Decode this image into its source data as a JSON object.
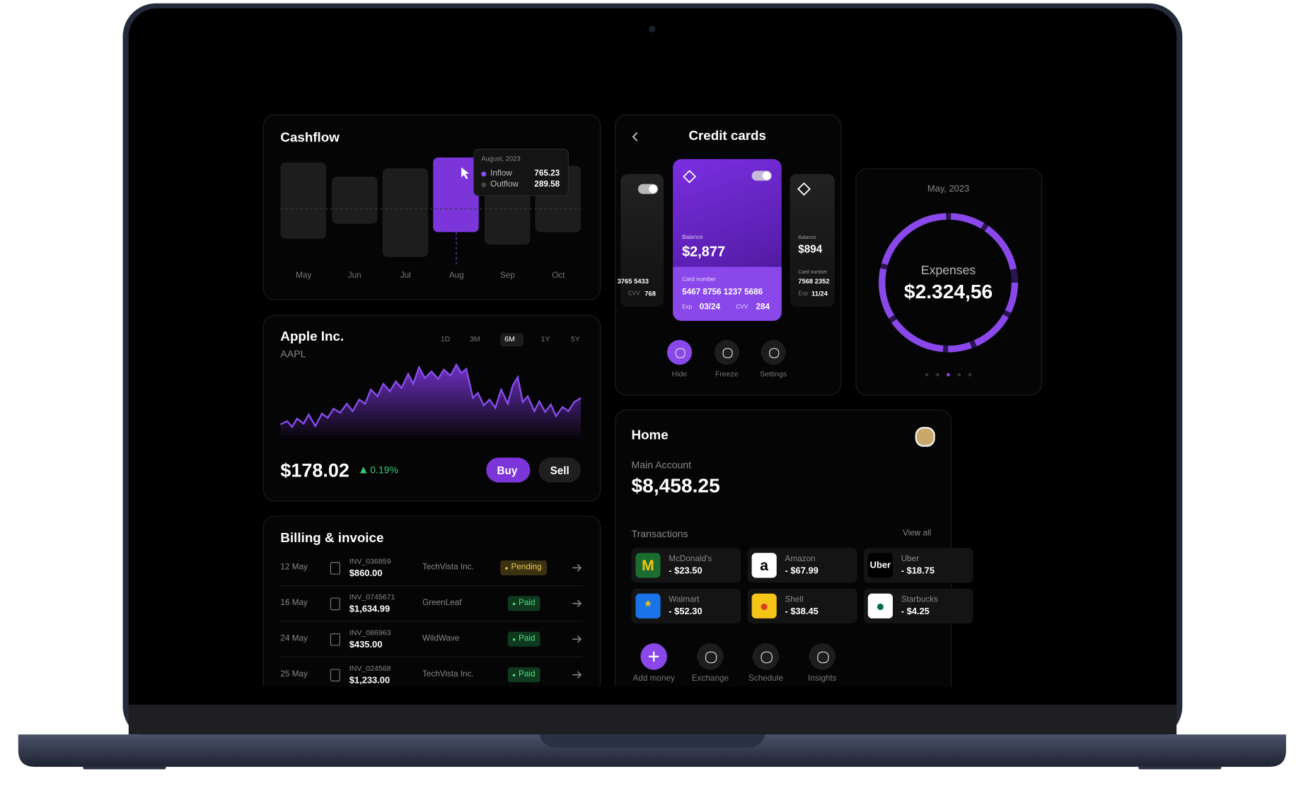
{
  "cashflow": {
    "title": "Cashflow",
    "months": [
      "May",
      "Jun",
      "Jul",
      "Aug",
      "Sep",
      "Oct"
    ],
    "tooltip": {
      "date": "August, 2023",
      "rows": [
        {
          "label": "Inflow",
          "value": "765.23"
        },
        {
          "label": "Outflow",
          "value": "289.58"
        }
      ]
    }
  },
  "stock": {
    "name": "Apple Inc.",
    "ticker": "AAPL",
    "ranges": [
      "1D",
      "3M",
      "6M",
      "1Y",
      "5Y"
    ],
    "price": "$178.02",
    "change": "0.19%",
    "buy": "Buy",
    "sell": "Sell"
  },
  "billing": {
    "title": "Billing & invoice",
    "rows": [
      {
        "date": "12 May",
        "invoice": "INV_036859",
        "amount": "$860.00",
        "company": "TechVista Inc.",
        "status": "Pending"
      },
      {
        "date": "16 May",
        "invoice": "INV_0745671",
        "amount": "$1,634.99",
        "company": "GreenLeaf",
        "status": "Paid"
      },
      {
        "date": "24 May",
        "invoice": "INV_086963",
        "amount": "$435.00",
        "company": "WildWave",
        "status": "Paid"
      },
      {
        "date": "25 May",
        "invoice": "INV_024568",
        "amount": "$1,233.00",
        "company": "TechVista Inc.",
        "status": "Paid"
      }
    ]
  },
  "credit_cards": {
    "title": "Credit cards",
    "card": {
      "balance_label": "Balance",
      "balance": "$2,877",
      "number_label": "Card number",
      "number": "5467 8756 1237 5686",
      "exp_label": "Exp",
      "exp": "03/24",
      "cvv_label": "CVV",
      "cvv": "284"
    },
    "left_card": {
      "number": "3765 5433",
      "cvv_label": "CVV",
      "cvv": "768"
    },
    "right_card": {
      "balance_label": "Balance",
      "balance": "$894",
      "number_label": "Card number",
      "number": "7568 2352",
      "exp_label": "Exp",
      "exp": "11/24"
    },
    "actions": [
      "Hide",
      "Freeze",
      "Settings"
    ]
  },
  "expenses": {
    "date": "May, 2023",
    "label": "Expenses",
    "amount": "$2.324,56"
  },
  "home": {
    "title": "Home",
    "account": "Main Account",
    "balance": "$8,458.25",
    "transactions_title": "Transactions",
    "view_all": "View all",
    "transactions": [
      {
        "name": "McDonald's",
        "amount": "- $23.50"
      },
      {
        "name": "Amazon",
        "amount": "- $67.99"
      },
      {
        "name": "Uber",
        "amount": "- $18.75"
      },
      {
        "name": "Walmart",
        "amount": "- $52.30"
      },
      {
        "name": "Shell",
        "amount": "- $38.45"
      },
      {
        "name": "Starbucks",
        "amount": "- $4.25"
      }
    ],
    "actions": [
      "Add money",
      "Exchange",
      "Schedule",
      "Insights"
    ]
  }
}
